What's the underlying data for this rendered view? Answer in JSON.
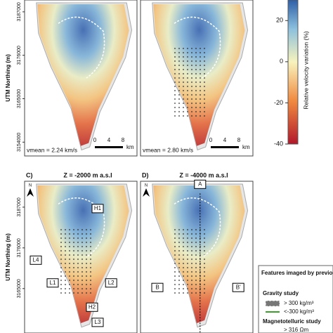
{
  "y_axis_label": "UTM Northing (m)",
  "colorbar": {
    "label": "Relative velocity variation (%)",
    "lim": [
      -40,
      30
    ],
    "ticks": [
      20,
      0,
      -20,
      -40
    ]
  },
  "panels": [
    {
      "ylim": [
        3150500,
        3190000
      ],
      "yticks": [
        3187000,
        3176000,
        3165000,
        3154000
      ],
      "vmean": "vmean = 2.24 km/s",
      "scale": [
        "0",
        "4",
        "8",
        "km"
      ]
    },
    {
      "vmean": "vmean = 2.80 km/s",
      "scale": [
        "0",
        "4",
        "8",
        "km"
      ]
    },
    {
      "ylim": [
        3153000,
        3194000
      ],
      "yticks": [
        3187000,
        3176000,
        3165000
      ],
      "letter": "C)",
      "title": "Z = -2000 m a.s.l",
      "north": "N",
      "labels": [
        "H1",
        "L4",
        "L1",
        "L2",
        "H2",
        "L3"
      ]
    },
    {
      "letter": "D)",
      "title": "Z = -4000 m a.s.l",
      "north": "N",
      "labels": [
        "A",
        "B",
        "B'"
      ]
    }
  ],
  "legend": {
    "title": "Features imaged by previous studies",
    "gravity": "Gravity study",
    "high": "> 300 kg/m³",
    "low": "<-300 kg/m³",
    "mt": "Magnetotelluric study",
    "mt_high": "> 316 Ωm"
  }
}
